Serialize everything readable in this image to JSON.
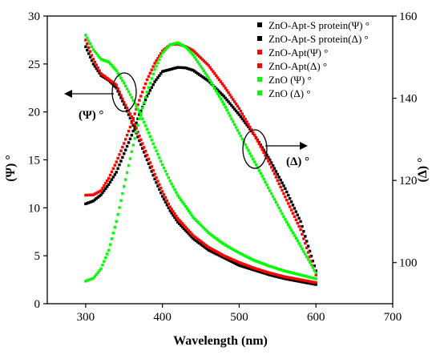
{
  "chart_data": {
    "type": "scatter",
    "xlabel": "Wavelength (nm)",
    "ylabel_left": "(Ψ) °",
    "ylabel_right": "(Δ) °",
    "xlim": [
      250,
      700
    ],
    "ylim_left": [
      0,
      30
    ],
    "ylim_right": [
      90,
      160
    ],
    "x_ticks": [
      300,
      400,
      500,
      600,
      700
    ],
    "x_tick_labels": [
      "300",
      "400",
      "500",
      "600",
      "700"
    ],
    "y_left_ticks": [
      0,
      5,
      10,
      15,
      20,
      25,
      30
    ],
    "y_left_tick_labels": [
      "0",
      "5",
      "10",
      "15",
      "20",
      "25",
      "30"
    ],
    "y_right_ticks": [
      100,
      120,
      140,
      160
    ],
    "y_right_tick_labels": [
      "100",
      "120",
      "140",
      "160"
    ],
    "legend_position": "top-right",
    "grid": false,
    "annotations": {
      "psi_label": "(Ψ) °",
      "delta_label": "(Δ) °"
    },
    "series": [
      {
        "name": "ZnO-Apt-S protein(Ψ) °",
        "color": "#000000",
        "axis": "left",
        "x": [
          300,
          310,
          320,
          330,
          340,
          350,
          360,
          370,
          380,
          390,
          400,
          410,
          420,
          440,
          460,
          480,
          500,
          520,
          540,
          560,
          580,
          600
        ],
        "y": [
          26.8,
          25.0,
          23.8,
          23.3,
          22.5,
          20.8,
          19.0,
          17.0,
          15.0,
          13.0,
          11.2,
          9.7,
          8.5,
          6.8,
          5.6,
          4.8,
          4.0,
          3.5,
          3.0,
          2.6,
          2.3,
          2.0
        ]
      },
      {
        "name": "ZnO-Apt-S protein(Δ) °",
        "color": "#000000",
        "axis": "right",
        "x": [
          300,
          310,
          320,
          330,
          340,
          350,
          360,
          370,
          380,
          390,
          400,
          410,
          420,
          430,
          440,
          460,
          480,
          500,
          520,
          540,
          560,
          580,
          600
        ],
        "y": [
          114.3,
          115.0,
          116.5,
          119.0,
          122.0,
          126.5,
          131.0,
          136.0,
          140.5,
          144.0,
          146.5,
          147.0,
          147.5,
          147.4,
          146.8,
          144.2,
          140.5,
          136.0,
          131.0,
          125.0,
          118.0,
          110.0,
          98.0
        ]
      },
      {
        "name": "ZnO-Apt(Ψ) °",
        "color": "#ff0000",
        "axis": "left",
        "x": [
          300,
          310,
          320,
          330,
          340,
          350,
          360,
          370,
          380,
          390,
          400,
          410,
          420,
          440,
          460,
          480,
          500,
          520,
          540,
          560,
          580,
          600
        ],
        "y": [
          27.5,
          25.5,
          24.0,
          23.4,
          22.8,
          21.0,
          19.5,
          17.5,
          15.5,
          13.5,
          11.7,
          10.1,
          8.9,
          7.1,
          5.9,
          5.0,
          4.3,
          3.7,
          3.2,
          2.8,
          2.5,
          2.2
        ]
      },
      {
        "name": "ZnO-Apt(Δ) °",
        "color": "#ff0000",
        "axis": "right",
        "x": [
          300,
          310,
          320,
          330,
          340,
          350,
          360,
          370,
          380,
          390,
          400,
          410,
          420,
          430,
          440,
          460,
          480,
          500,
          520,
          540,
          560,
          580,
          600
        ],
        "y": [
          116.4,
          116.5,
          117.5,
          120.5,
          124.5,
          129.0,
          134.0,
          139.5,
          144.5,
          148.5,
          151.5,
          153.0,
          153.2,
          152.6,
          151.6,
          148.0,
          143.0,
          137.5,
          131.0,
          124.0,
          116.0,
          108.0,
          97.0
        ]
      },
      {
        "name": "ZnO (Ψ) °",
        "color": "#00ff00",
        "axis": "left",
        "x": [
          300,
          310,
          320,
          330,
          340,
          350,
          360,
          370,
          380,
          390,
          400,
          410,
          420,
          440,
          460,
          480,
          500,
          520,
          540,
          560,
          580,
          600
        ],
        "y": [
          28.0,
          26.5,
          25.5,
          25.2,
          24.3,
          23.0,
          21.5,
          20.0,
          18.2,
          16.3,
          14.5,
          12.8,
          11.3,
          9.0,
          7.4,
          6.2,
          5.3,
          4.5,
          3.9,
          3.4,
          3.0,
          2.6
        ]
      },
      {
        "name": "ZnO (Δ) °",
        "color": "#00ff00",
        "axis": "right",
        "x": [
          300,
          310,
          320,
          330,
          340,
          350,
          360,
          370,
          380,
          390,
          400,
          410,
          420,
          430,
          440,
          460,
          480,
          500,
          520,
          540,
          560,
          580,
          600
        ],
        "y": [
          95.5,
          96.2,
          98.5,
          103.0,
          110.0,
          118.5,
          127.0,
          135.0,
          141.5,
          147.0,
          151.0,
          153.0,
          153.5,
          152.5,
          150.5,
          145.0,
          138.5,
          131.5,
          124.5,
          117.5,
          110.5,
          104.0,
          97.5
        ]
      }
    ]
  }
}
